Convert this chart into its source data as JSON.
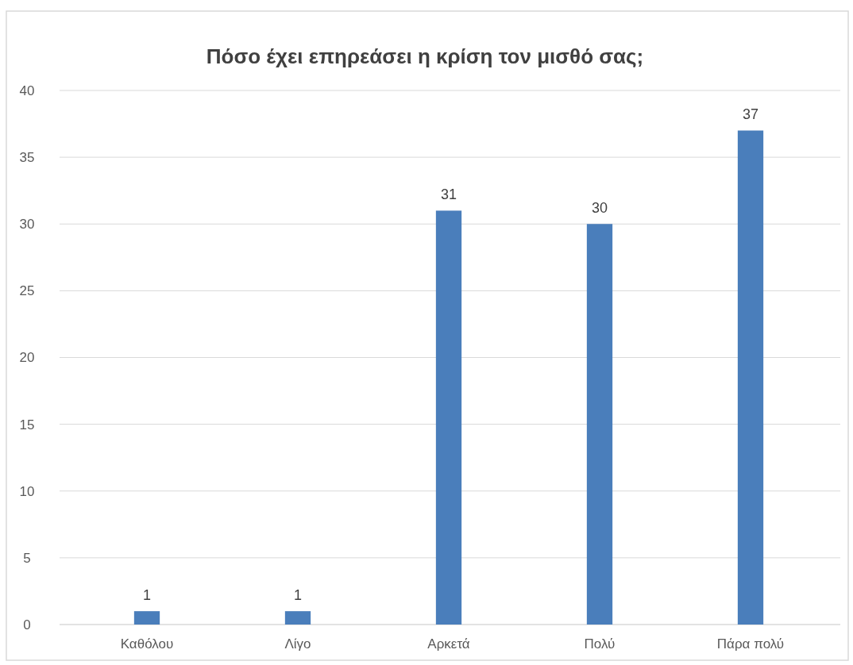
{
  "chart_data": {
    "type": "bar",
    "title": "Πόσο έχει επηρεάσει η κρίση τον μισθό σας;",
    "categories": [
      "Καθόλου",
      "Λίγο",
      "Αρκετά",
      "Πολύ",
      "Πάρα πολύ"
    ],
    "values": [
      1,
      1,
      31,
      30,
      37
    ],
    "color": "#4a7ebb",
    "ylim": [
      0,
      40
    ],
    "yticks": [
      0,
      5,
      10,
      15,
      20,
      25,
      30,
      35,
      40
    ],
    "grid": "y",
    "data_labels": true
  }
}
